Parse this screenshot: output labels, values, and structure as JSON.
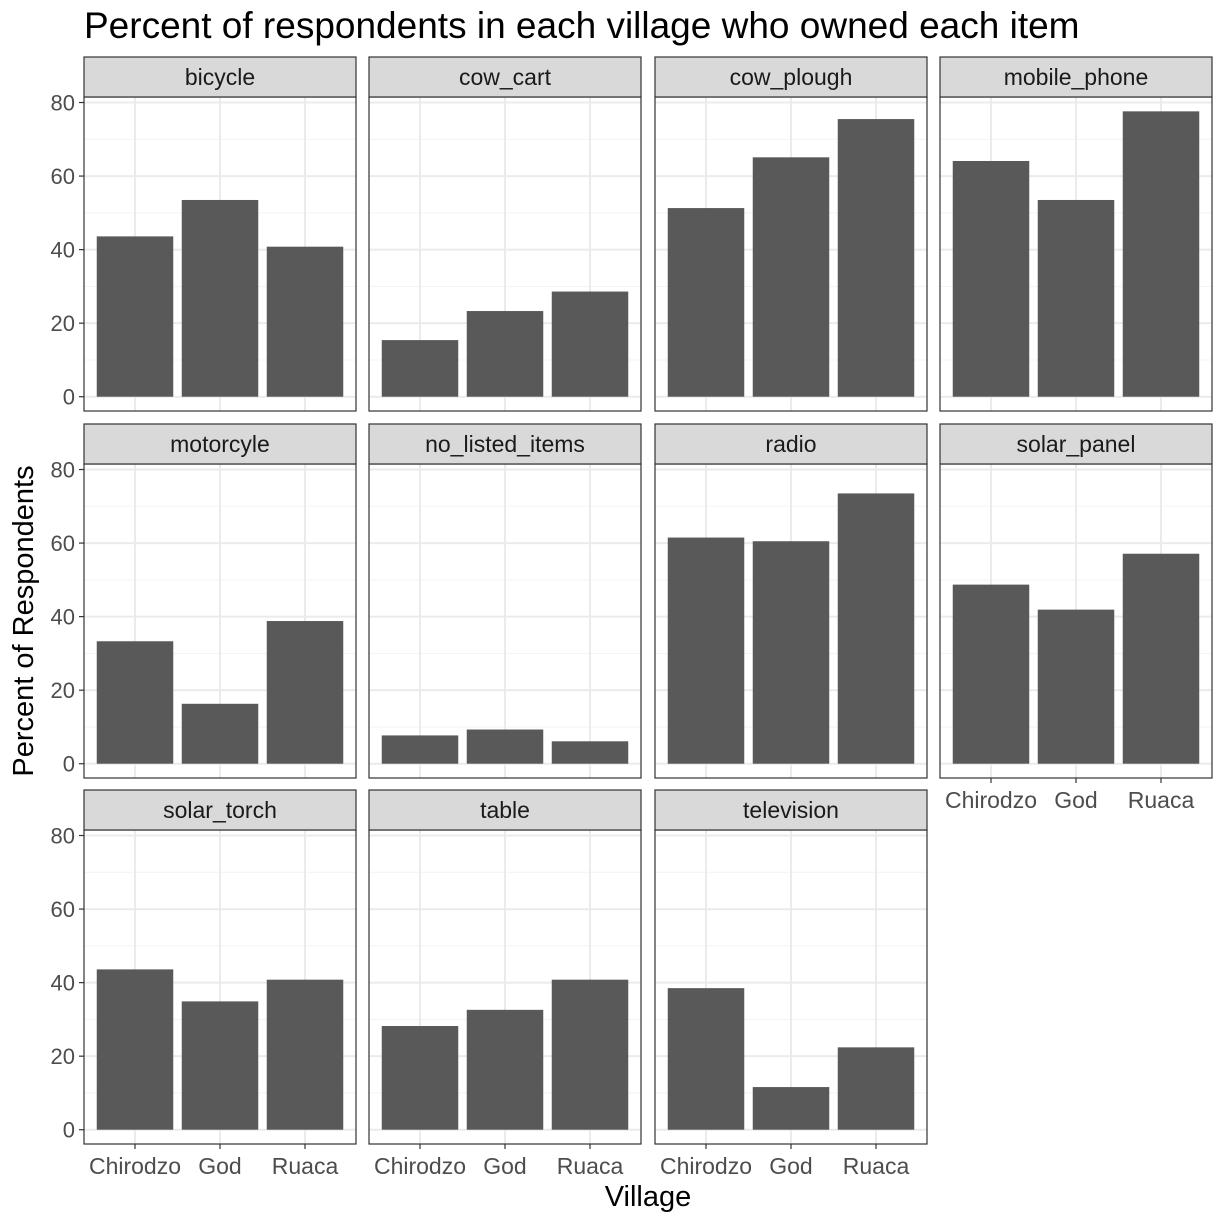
{
  "chart_data": {
    "type": "bar",
    "title": "Percent of respondents in each village who owned each item",
    "xlabel": "Village",
    "ylabel": "Percent of Respondents",
    "categories": [
      "Chirodzo",
      "God",
      "Ruaca"
    ],
    "ylim": [
      0,
      80
    ],
    "yticks": [
      0,
      20,
      40,
      60,
      80
    ],
    "grid": true,
    "bar_color": "#595959",
    "strip_color": "#D9D9D9",
    "facets": [
      {
        "name": "bicycle",
        "values": [
          43.6,
          53.5,
          40.8
        ]
      },
      {
        "name": "cow_cart",
        "values": [
          15.4,
          23.3,
          28.6
        ]
      },
      {
        "name": "cow_plough",
        "values": [
          51.3,
          65.1,
          75.5
        ]
      },
      {
        "name": "mobile_phone",
        "values": [
          64.1,
          53.5,
          77.6
        ]
      },
      {
        "name": "motorcyle",
        "values": [
          33.3,
          16.3,
          38.8
        ]
      },
      {
        "name": "no_listed_items",
        "values": [
          7.7,
          9.3,
          6.1
        ]
      },
      {
        "name": "radio",
        "values": [
          61.5,
          60.5,
          73.5
        ]
      },
      {
        "name": "solar_panel",
        "values": [
          48.7,
          41.9,
          57.1
        ]
      },
      {
        "name": "solar_torch",
        "values": [
          43.6,
          34.9,
          40.8
        ]
      },
      {
        "name": "table",
        "values": [
          28.2,
          32.6,
          40.8
        ]
      },
      {
        "name": "television",
        "values": [
          38.5,
          11.6,
          22.4
        ]
      }
    ]
  }
}
